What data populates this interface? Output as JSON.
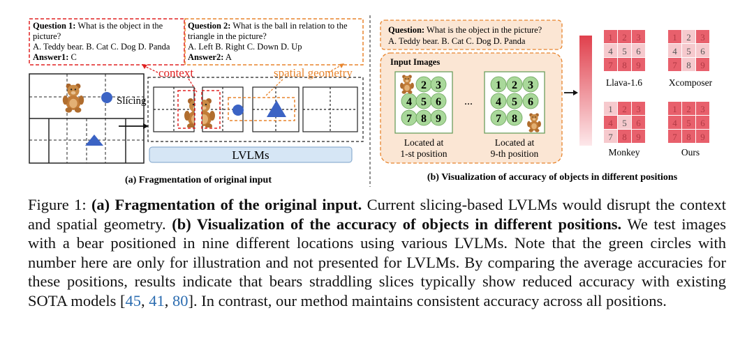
{
  "panel_a": {
    "q1": {
      "label": "Question 1:",
      "text": "What is the object in the",
      "line2": "picture?",
      "options": "A. Teddy bear. B. Cat C. Dog D. Panda",
      "answer_label": "Answer1:",
      "answer": "C"
    },
    "q2": {
      "label": "Question 2:",
      "text": "What is the ball in relation to the",
      "line2": "triangle in the picture?",
      "options": "A. Left B. Right C. Down D. Up",
      "answer_label": "Answer2:",
      "answer": "A"
    },
    "context_label": "context",
    "spatial_label": "spatial geometry",
    "slicing_label": "Slicing",
    "lvlms_label": "LVLMs",
    "subcaption": "(a) Fragmentation of original input"
  },
  "panel_b": {
    "question_label": "Question:",
    "question_text": "What is the object in the picture?",
    "options": "A. Teddy bear. B. Cat C. Dog D. Panda",
    "input_images_label": "Input Images",
    "ellipsis": "...",
    "grid_numbers": [
      "1",
      "2",
      "3",
      "4",
      "5",
      "6",
      "7",
      "8",
      "9"
    ],
    "pos1_line1": "Located at",
    "pos1_line2": "1-st position",
    "pos9_line1": "Located at",
    "pos9_line2": "9-th position",
    "models": [
      "Llava-1.6",
      "Xcomposer",
      "Monkey",
      "Ours"
    ],
    "subcaption": "(b) Visualization of accuracy of objects in different positions"
  },
  "colors": {
    "red_dashed": "#e02020",
    "orange_dashed": "#e8842c",
    "panel_bg": "#fbe6d4",
    "green_circle": "#a9d89a",
    "ball_blue": "#3b63c4",
    "lvlms_box": "#d6e6f5",
    "heat_dark": "#e8606c",
    "heat_light": "#f6c9cd"
  },
  "caption": {
    "fig_label": "Figure 1:",
    "part_a_bold": "(a) Fragmentation of the original input.",
    "part_a_text": "Current slicing-based LVLMs would disrupt the context and spatial geometry.",
    "part_b_bold": "(b) Visualization of the accuracy of objects in different positions.",
    "part_b_text": "We test images with a bear positioned in nine different locations using various LVLMs. Note that the green circles with number here are only for illustration and not presented for LVLMs. By comparing the average accuracies for these positions, results indicate that bears straddling slices typically show reduced accuracy with existing SOTA models [",
    "cite1": "45",
    "sep1": ", ",
    "cite2": "41",
    "sep2": ", ",
    "cite3": "80",
    "end_text": "]. In contrast, our method maintains consistent accuracy across all positions."
  }
}
